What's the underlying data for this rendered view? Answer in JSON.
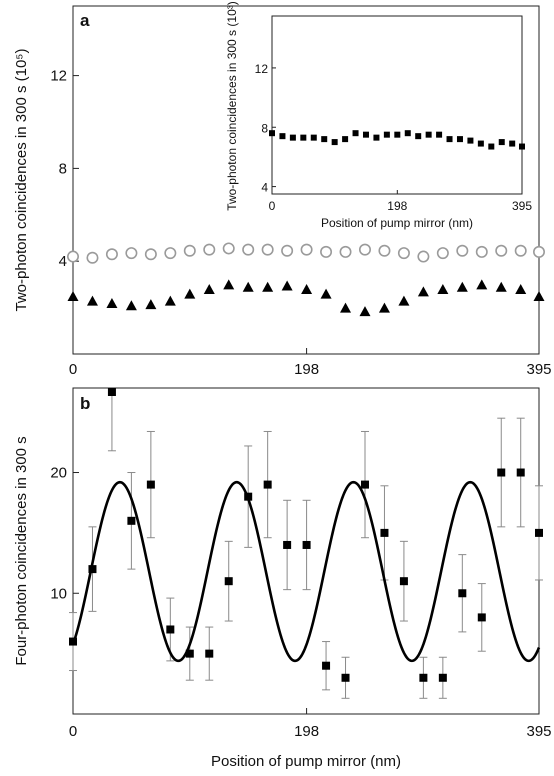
{
  "chart_data": [
    {
      "panel": "a",
      "type": "scatter",
      "ylabel": "Two-photon coincidences in 300 s (10⁵)",
      "xticks": [
        0,
        198,
        395
      ],
      "yticks": [
        4,
        8,
        12
      ],
      "xlim": [
        0,
        395
      ],
      "ylim": [
        0,
        15
      ],
      "series": [
        {
          "marker": "open-circle",
          "color": "#9a9a9a",
          "x": [
            0,
            16.5,
            33,
            49.5,
            66,
            82.5,
            99,
            115.5,
            132,
            148.5,
            165,
            181.5,
            198,
            214.5,
            231,
            247.5,
            264,
            280.5,
            297,
            313.5,
            330,
            346.5,
            363,
            379.5,
            395
          ],
          "y": [
            4.2,
            4.15,
            4.3,
            4.35,
            4.3,
            4.35,
            4.45,
            4.5,
            4.55,
            4.5,
            4.5,
            4.45,
            4.5,
            4.4,
            4.4,
            4.5,
            4.45,
            4.35,
            4.2,
            4.35,
            4.45,
            4.4,
            4.45,
            4.45,
            4.4
          ]
        },
        {
          "marker": "filled-triangle",
          "color": "#000000",
          "x": [
            0,
            16.5,
            33,
            49.5,
            66,
            82.5,
            99,
            115.5,
            132,
            148.5,
            165,
            181.5,
            198,
            214.5,
            231,
            247.5,
            264,
            280.5,
            297,
            313.5,
            330,
            346.5,
            363,
            379.5,
            395
          ],
          "y": [
            2.5,
            2.3,
            2.2,
            2.1,
            2.15,
            2.3,
            2.6,
            2.8,
            3.0,
            2.9,
            2.9,
            2.95,
            2.8,
            2.6,
            2.0,
            1.85,
            2.0,
            2.3,
            2.7,
            2.8,
            2.9,
            3.0,
            2.9,
            2.8,
            2.5
          ]
        }
      ],
      "inset": {
        "type": "scatter",
        "xlabel": "Position of pump mirror (nm)",
        "ylabel": "Two-photon coincidences in 300 s (10³)",
        "xticks": [
          0,
          198,
          395
        ],
        "yticks": [
          4,
          8,
          12
        ],
        "xlim": [
          0,
          395
        ],
        "ylim": [
          3.5,
          15.5
        ],
        "marker": "filled-square",
        "x": [
          0,
          16.5,
          33,
          49.5,
          66,
          82.5,
          99,
          115.5,
          132,
          148.5,
          165,
          181.5,
          198,
          214.5,
          231,
          247.5,
          264,
          280.5,
          297,
          313.5,
          330,
          346.5,
          363,
          379.5,
          395
        ],
        "y": [
          7.6,
          7.4,
          7.3,
          7.3,
          7.3,
          7.2,
          7.0,
          7.2,
          7.6,
          7.5,
          7.3,
          7.5,
          7.5,
          7.6,
          7.4,
          7.5,
          7.5,
          7.2,
          7.2,
          7.1,
          6.9,
          6.7,
          7.0,
          6.9,
          6.7
        ]
      }
    },
    {
      "panel": "b",
      "type": "scatter",
      "xlabel": "Position of pump mirror (nm)",
      "ylabel": "Four-photon coincidences in 300 s",
      "xticks": [
        0,
        198,
        395
      ],
      "yticks": [
        10,
        20
      ],
      "xlim": [
        0,
        395
      ],
      "ylim": [
        0,
        27
      ],
      "points": {
        "marker": "filled-square",
        "x": [
          0,
          16.5,
          33,
          49.5,
          66,
          82.5,
          99,
          115.5,
          132,
          148.5,
          165,
          181.5,
          198,
          214.5,
          231,
          247.5,
          264,
          280.5,
          297,
          313.5,
          330,
          346.5,
          363,
          379.5,
          395
        ],
        "y": [
          6,
          12,
          27,
          16,
          19,
          7,
          5,
          5,
          11,
          18,
          19,
          14,
          14,
          4,
          3,
          19,
          15,
          11,
          3,
          3,
          10,
          8,
          20,
          20,
          15
        ],
        "err": [
          2.4,
          3.5,
          5.2,
          4.0,
          4.4,
          2.6,
          2.2,
          2.2,
          3.3,
          4.2,
          4.4,
          3.7,
          3.7,
          2.0,
          1.7,
          4.4,
          3.9,
          3.3,
          1.7,
          1.7,
          3.2,
          2.8,
          4.5,
          4.5,
          3.9
        ]
      },
      "fit": {
        "form": "A + B*sin(2*pi*(x - x0)/period)",
        "A": 11.8,
        "B": 7.4,
        "period": 99,
        "x0": 15
      }
    }
  ]
}
